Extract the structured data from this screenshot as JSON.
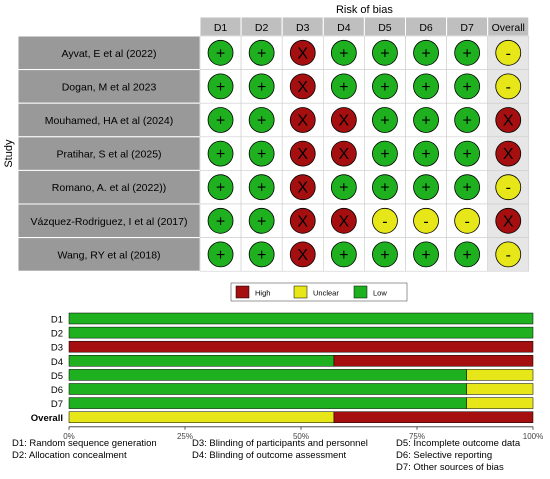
{
  "chart_data": [
    {
      "type": "table",
      "title": "Risk of bias",
      "ylabel": "Study",
      "columns": [
        "D1",
        "D2",
        "D3",
        "D4",
        "D5",
        "D6",
        "D7",
        "Overall"
      ],
      "rows": [
        {
          "study": "Ayvat, E et al (2022)",
          "ratings": [
            "low",
            "low",
            "high",
            "low",
            "low",
            "low",
            "low",
            "unclear"
          ]
        },
        {
          "study": "Dogan, M et al 2023",
          "ratings": [
            "low",
            "low",
            "high",
            "low",
            "low",
            "low",
            "low",
            "unclear"
          ]
        },
        {
          "study": "Mouhamed, HA et al (2024)",
          "ratings": [
            "low",
            "low",
            "high",
            "high",
            "low",
            "low",
            "low",
            "high"
          ]
        },
        {
          "study": "Pratihar, S et al (2025)",
          "ratings": [
            "low",
            "low",
            "high",
            "high",
            "low",
            "low",
            "low",
            "high"
          ]
        },
        {
          "study": "Romano, A. et al (2022))",
          "ratings": [
            "low",
            "low",
            "high",
            "low",
            "low",
            "low",
            "low",
            "unclear"
          ]
        },
        {
          "study": "Vázquez-Rodriguez, I et al (2017)",
          "ratings": [
            "low",
            "low",
            "high",
            "high",
            "unclear",
            "unclear",
            "unclear",
            "high"
          ]
        },
        {
          "study": "Wang, RY et al (2018)",
          "ratings": [
            "low",
            "low",
            "high",
            "low",
            "low",
            "low",
            "low",
            "unclear"
          ]
        }
      ],
      "symbols": {
        "low": "+",
        "high": "X",
        "unclear": "-"
      }
    },
    {
      "type": "bar",
      "stacked": true,
      "orientation": "horizontal",
      "categories": [
        "D1",
        "D2",
        "D3",
        "D4",
        "D5",
        "D6",
        "D7",
        "Overall"
      ],
      "series": [
        {
          "name": "Low",
          "values": [
            100,
            100,
            0,
            57.1,
            85.7,
            85.7,
            85.7,
            0
          ]
        },
        {
          "name": "Unclear",
          "values": [
            0,
            0,
            0,
            0,
            14.3,
            14.3,
            14.3,
            57.1
          ]
        },
        {
          "name": "High",
          "values": [
            0,
            0,
            100,
            42.9,
            0,
            0,
            0,
            42.9
          ]
        }
      ],
      "legend_order": [
        "High",
        "Unclear",
        "Low"
      ],
      "xlim": [
        0,
        100
      ],
      "xticks": [
        "0%",
        "25%",
        "50%",
        "75%",
        "100%"
      ],
      "legend_position": "top"
    }
  ],
  "colors": {
    "low": "#1fb01f",
    "unclear": "#e6e619",
    "high": "#a50f0f"
  },
  "captions": [
    "D1: Random sequence generation",
    "D2: Allocation concealment",
    "D3: Blinding of participants and personnel",
    "D4: Blinding of outcome assessment",
    "D5: Incomplete outcome data",
    "D6: Selective reporting",
    "D7: Other sources of bias"
  ]
}
